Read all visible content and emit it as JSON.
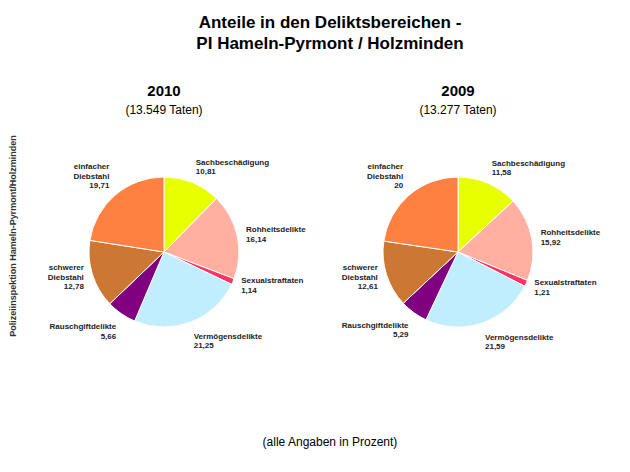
{
  "title": "Anteile in den Deliktsbereichen -\nPI Hameln-Pyrmont / Holzminden",
  "subtitle": "(alle Angaben in Prozent)",
  "annotations": [
    "Polizeiinspektion Hameln-Pyrmont/Holzminden"
  ],
  "chart_data": [
    {
      "type": "pie",
      "title": "2010",
      "subtitle": "(13.549 Taten)",
      "categories": [
        "Sachbeschädigung",
        "Rohheitsdelikte",
        "Sexualstraftaten",
        "Vermögensdelikte",
        "Rauschgiftdelikte",
        "schwerer\nDiebstahl",
        "einfacher\nDiebstahl"
      ],
      "values": [
        10.81,
        16.14,
        1.14,
        21.25,
        5.66,
        12.78,
        19.71
      ],
      "value_labels": [
        "10,81",
        "16,14",
        "1,14",
        "21,25",
        "5,66",
        "12,78",
        "19,71"
      ],
      "colors": [
        "#e8ff00",
        "#ffb0a0",
        "#ff3366",
        "#c0eeff",
        "#800080",
        "#cc7733",
        "#ff8040"
      ],
      "data_labels": true
    },
    {
      "type": "pie",
      "title": "2009",
      "subtitle": "(13.277 Taten)",
      "categories": [
        "Sachbeschädigung",
        "Rohheitsdelikte",
        "Sexualstraftaten",
        "Vermögensdelikte",
        "Rauschgiftdelikte",
        "schwerer\nDiebstahl",
        "einfacher\nDiebstahl"
      ],
      "values": [
        11.58,
        15.92,
        1.21,
        21.59,
        5.29,
        12.61,
        20.0
      ],
      "value_labels": [
        "11,58",
        "15,92",
        "1,21",
        "21,59",
        "5,29",
        "12,61",
        "20"
      ],
      "colors": [
        "#e8ff00",
        "#ffb0a0",
        "#ff3366",
        "#c0eeff",
        "#800080",
        "#cc7733",
        "#ff8040"
      ],
      "data_labels": true
    }
  ]
}
